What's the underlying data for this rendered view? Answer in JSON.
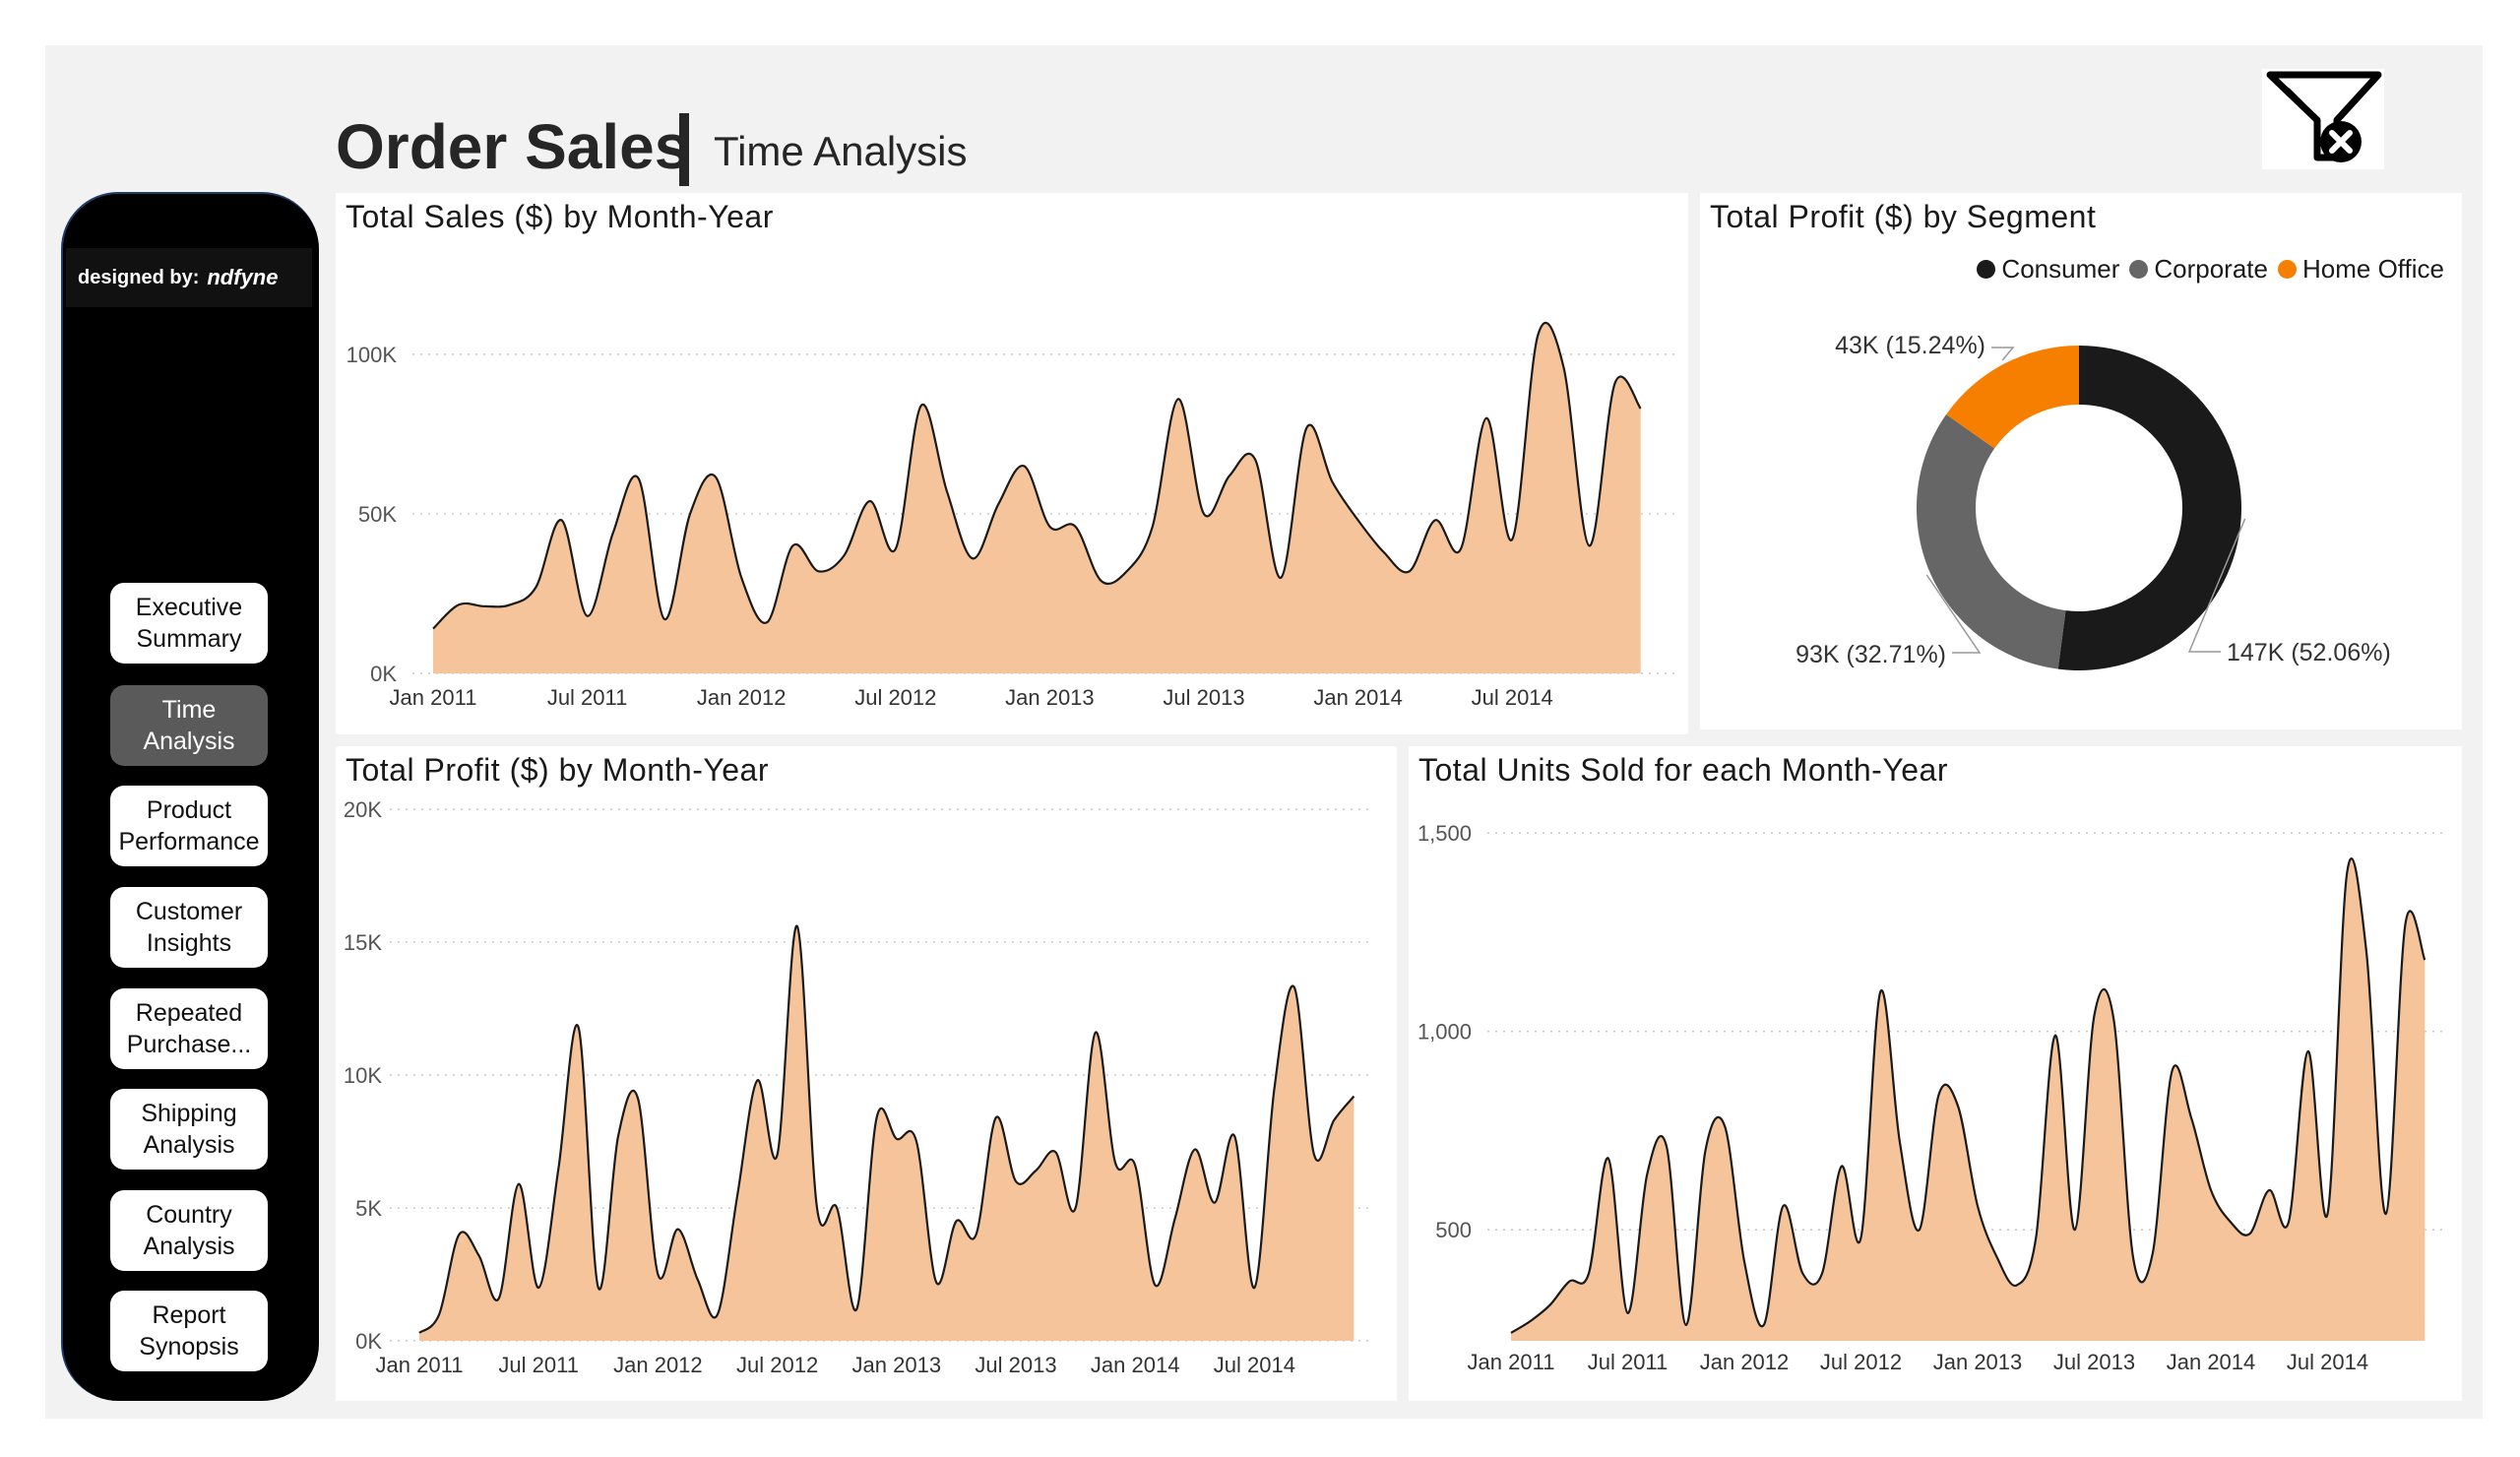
{
  "header": {
    "title": "Order Sales",
    "subtitle": "Time Analysis",
    "filter_icon": "clear-filter-icon"
  },
  "sidebar": {
    "designed_label": "designed by:",
    "designer": "ndfyne",
    "items": [
      {
        "label": "Executive\nSummary",
        "active": false
      },
      {
        "label": "Time\nAnalysis",
        "active": true
      },
      {
        "label": "Product\nPerformance",
        "active": false
      },
      {
        "label": "Customer\nInsights",
        "active": false
      },
      {
        "label": "Repeated\nPurchase...",
        "active": false
      },
      {
        "label": "Shipping\nAnalysis",
        "active": false
      },
      {
        "label": "Country\nAnalysis",
        "active": false
      },
      {
        "label": "Report\nSynopsis",
        "active": false
      }
    ]
  },
  "colors": {
    "area_fill": "#f6c49a",
    "line": "#1a1a1a",
    "consumer": "#1a1a1a",
    "corporate": "#666666",
    "home_office": "#f77f00",
    "nav_active": "#5a5a5a"
  },
  "chart_data": [
    {
      "id": "sales",
      "type": "area",
      "title": "Total Sales ($) by Month-Year",
      "x_ticks": [
        "Jan 2011",
        "Jul 2011",
        "Jan 2012",
        "Jul 2012",
        "Jan 2013",
        "Jul 2013",
        "Jan 2014",
        "Jul 2014"
      ],
      "y_ticks": [
        "0K",
        "50K",
        "100K"
      ],
      "y_tick_values": [
        0,
        50000,
        100000
      ],
      "ylim": [
        0,
        108000
      ],
      "values": [
        14000,
        21500,
        21000,
        21500,
        27000,
        48000,
        18000,
        44000,
        61000,
        17000,
        50000,
        61500,
        30000,
        16000,
        40000,
        32000,
        37000,
        54000,
        39000,
        84000,
        57000,
        36000,
        53000,
        65000,
        46000,
        46000,
        29000,
        32000,
        46000,
        86000,
        50000,
        62000,
        67000,
        30000,
        77000,
        60000,
        48000,
        38000,
        32000,
        48000,
        39000,
        80000,
        42000,
        106000,
        96000,
        40000,
        91000,
        83000
      ]
    },
    {
      "id": "segment",
      "type": "pie",
      "title": "Total Profit ($) by Segment",
      "legend": [
        "Consumer",
        "Corporate",
        "Home Office"
      ],
      "values": [
        52.06,
        32.71,
        15.24
      ],
      "labels": [
        "147K (52.06%)",
        "93K (32.71%)",
        "43K (15.24%)"
      ]
    },
    {
      "id": "profit",
      "type": "area",
      "title": "Total Profit ($) by Month-Year",
      "x_ticks": [
        "Jan 2011",
        "Jul 2011",
        "Jan 2012",
        "Jul 2012",
        "Jan 2013",
        "Jul 2013",
        "Jan 2014",
        "Jul 2014"
      ],
      "y_ticks": [
        "0K",
        "5K",
        "10K",
        "15K",
        "20K"
      ],
      "y_tick_values": [
        0,
        5000,
        10000,
        15000,
        20000
      ],
      "ylim": [
        0,
        20000
      ],
      "values": [
        300,
        1000,
        4000,
        3200,
        1600,
        5900,
        2000,
        6500,
        11800,
        2000,
        7700,
        9100,
        2500,
        4200,
        2300,
        1000,
        5500,
        9800,
        7000,
        15600,
        5000,
        5000,
        1200,
        8400,
        7600,
        7500,
        2200,
        4500,
        4000,
        8400,
        6000,
        6400,
        7100,
        5000,
        11600,
        6700,
        6600,
        2100,
        4600,
        7200,
        5200,
        7700,
        2000,
        9500,
        13300,
        7000,
        8300,
        9200
      ]
    },
    {
      "id": "units",
      "type": "area",
      "title": "Total Units Sold for each Month-Year",
      "x_ticks": [
        "Jan 2011",
        "Jul 2011",
        "Jan 2012",
        "Jul 2012",
        "Jan 2013",
        "Jul 2013",
        "Jan 2014",
        "Jul 2014"
      ],
      "y_ticks": [
        "500",
        "1,000",
        "1,500"
      ],
      "y_tick_values": [
        500,
        1000,
        1500
      ],
      "ylim": [
        220,
        1560
      ],
      "values": [
        240,
        270,
        310,
        370,
        390,
        680,
        290,
        640,
        710,
        260,
        700,
        760,
        420,
        260,
        560,
        390,
        390,
        660,
        480,
        1100,
        720,
        500,
        840,
        810,
        560,
        430,
        360,
        480,
        990,
        500,
        1040,
        1030,
        430,
        440,
        900,
        780,
        600,
        520,
        490,
        600,
        520,
        950,
        540,
        1400,
        1200,
        540,
        1270,
        1180
      ]
    }
  ]
}
